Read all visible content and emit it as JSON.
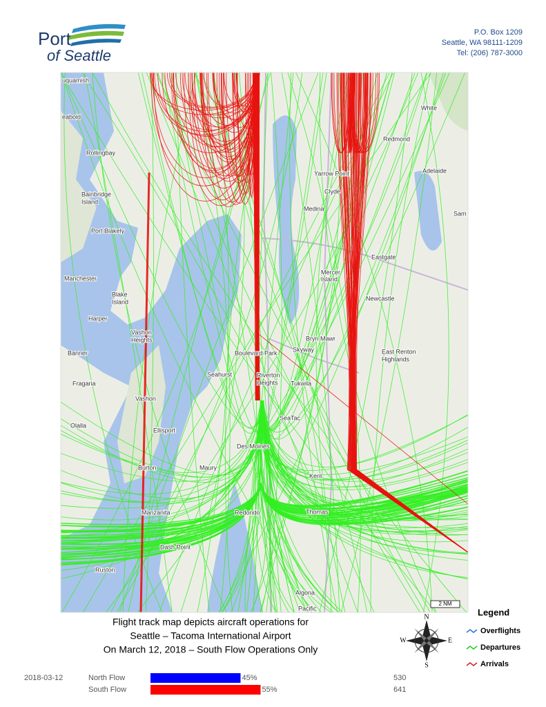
{
  "header": {
    "logo_top": "Port",
    "logo_bottom": "of Seattle",
    "address": [
      "P.O. Box 1209",
      "Seattle, WA 98111-1209",
      "Tel: (206) 787-3000"
    ]
  },
  "map": {
    "places": [
      "uquamish",
      "eabold",
      "Rollingbay",
      "Bainbridge",
      "Island",
      "Port Blakely",
      "Manchester",
      "Blake",
      "Island",
      "Harper",
      "Vashon",
      "Heights",
      "Banner",
      "Fragaria",
      "Vashon",
      "Olalla",
      "Ellisport",
      "Burton",
      "Maury",
      "Manzanita",
      "Dash Point",
      "Ruston",
      "White",
      "Redmond",
      "Adelaide",
      "Sam",
      "Yarrow Point",
      "Clyde",
      "Medina",
      "Mercer",
      "Island",
      "Eastgate",
      "Newcastle",
      "Bryn Mawr",
      "Boulevard Park",
      "Skyway",
      "East Renton",
      "Highlands",
      "Seahurst",
      "Riverton",
      "Heights",
      "Tukwila",
      "SeaTac",
      "Des Moines",
      "Kent",
      "Thomas",
      "Redondo",
      "Algona",
      "Pacific"
    ],
    "scale": "2 NM"
  },
  "caption": [
    "Flight track map depicts aircraft operations for",
    "Seattle – Tacoma International Airport",
    "On March 12, 2018 – South Flow Operations Only"
  ],
  "legend": {
    "title": "Legend",
    "items": [
      {
        "name": "Overflights",
        "color": "#2a6fdb"
      },
      {
        "name": "Departures",
        "color": "#22cc22"
      },
      {
        "name": "Arrivals",
        "color": "#cc2222"
      }
    ]
  },
  "compass": {
    "n": "N",
    "e": "E",
    "s": "S",
    "w": "W"
  },
  "flow": {
    "date": "2018-03-12",
    "categories": [
      "North Flow",
      "South Flow"
    ],
    "values": [
      45,
      55
    ],
    "value_labels": [
      "45%",
      "55%"
    ],
    "counts": [
      "530",
      "641"
    ],
    "colors": [
      "#0000ff",
      "#ff0000"
    ]
  }
}
